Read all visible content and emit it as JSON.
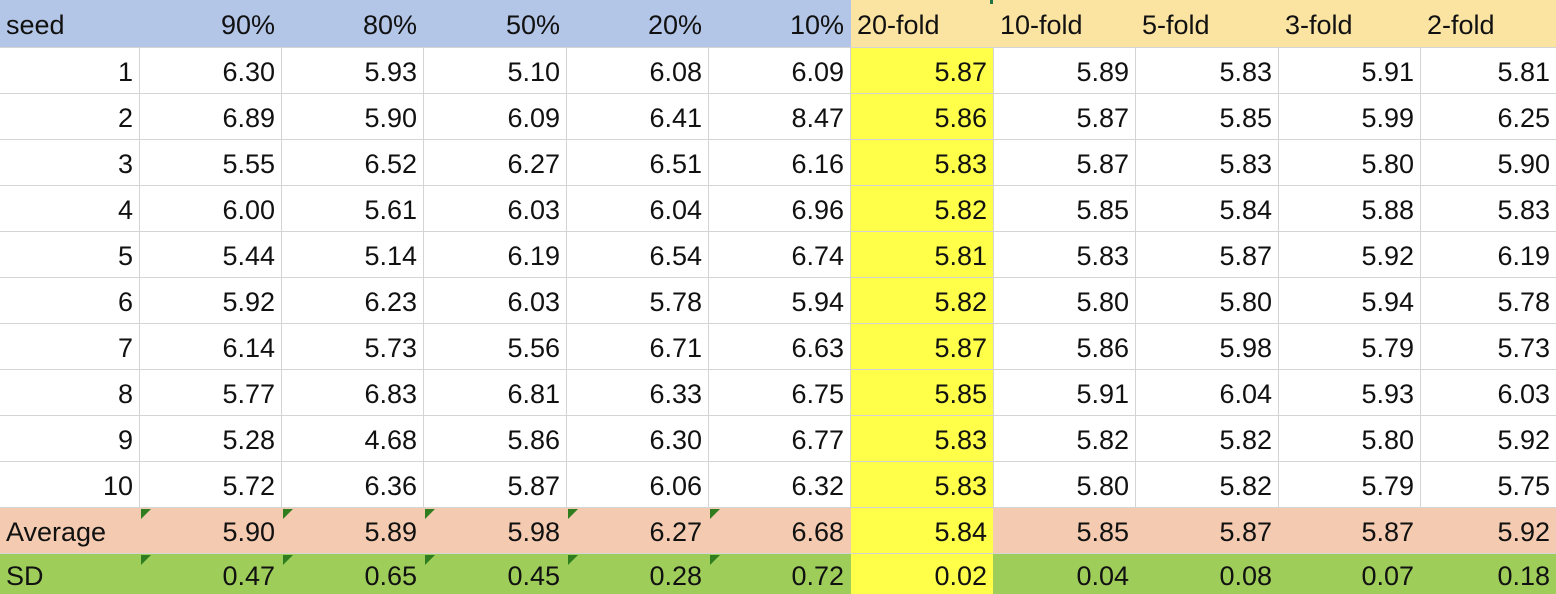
{
  "columns": [
    "seed",
    "90%",
    "80%",
    "50%",
    "20%",
    "10%",
    "20-fold",
    "10-fold",
    "5-fold",
    "3-fold",
    "2-fold"
  ],
  "rows": [
    [
      "1",
      "6.30",
      "5.93",
      "5.10",
      "6.08",
      "6.09",
      "5.87",
      "5.89",
      "5.83",
      "5.91",
      "5.81"
    ],
    [
      "2",
      "6.89",
      "5.90",
      "6.09",
      "6.41",
      "8.47",
      "5.86",
      "5.87",
      "5.85",
      "5.99",
      "6.25"
    ],
    [
      "3",
      "5.55",
      "6.52",
      "6.27",
      "6.51",
      "6.16",
      "5.83",
      "5.87",
      "5.83",
      "5.80",
      "5.90"
    ],
    [
      "4",
      "6.00",
      "5.61",
      "6.03",
      "6.04",
      "6.96",
      "5.82",
      "5.85",
      "5.84",
      "5.88",
      "5.83"
    ],
    [
      "5",
      "5.44",
      "5.14",
      "6.19",
      "6.54",
      "6.74",
      "5.81",
      "5.83",
      "5.87",
      "5.92",
      "6.19"
    ],
    [
      "6",
      "5.92",
      "6.23",
      "6.03",
      "5.78",
      "5.94",
      "5.82",
      "5.80",
      "5.80",
      "5.94",
      "5.78"
    ],
    [
      "7",
      "6.14",
      "5.73",
      "5.56",
      "6.71",
      "6.63",
      "5.87",
      "5.86",
      "5.98",
      "5.79",
      "5.73"
    ],
    [
      "8",
      "5.77",
      "6.83",
      "6.81",
      "6.33",
      "6.75",
      "5.85",
      "5.91",
      "6.04",
      "5.93",
      "6.03"
    ],
    [
      "9",
      "5.28",
      "4.68",
      "5.86",
      "6.30",
      "6.77",
      "5.83",
      "5.82",
      "5.82",
      "5.80",
      "5.92"
    ],
    [
      "10",
      "5.72",
      "6.36",
      "5.87",
      "6.06",
      "6.32",
      "5.83",
      "5.80",
      "5.82",
      "5.79",
      "5.75"
    ]
  ],
  "average": [
    "Average",
    "5.90",
    "5.89",
    "5.98",
    "6.27",
    "6.68",
    "5.84",
    "5.85",
    "5.87",
    "5.87",
    "5.92"
  ],
  "sd": [
    "SD",
    "0.47",
    "0.65",
    "0.45",
    "0.28",
    "0.72",
    "0.02",
    "0.04",
    "0.08",
    "0.07",
    "0.18"
  ],
  "colors": {
    "header_blue": "#b4c6e7",
    "header_fold": "#fbe3a2",
    "highlight_yellow": "#ffff4a",
    "average_row": "#f4cbb0",
    "sd_row": "#9fcd5a",
    "error_indicator": "#2f7d1f"
  }
}
